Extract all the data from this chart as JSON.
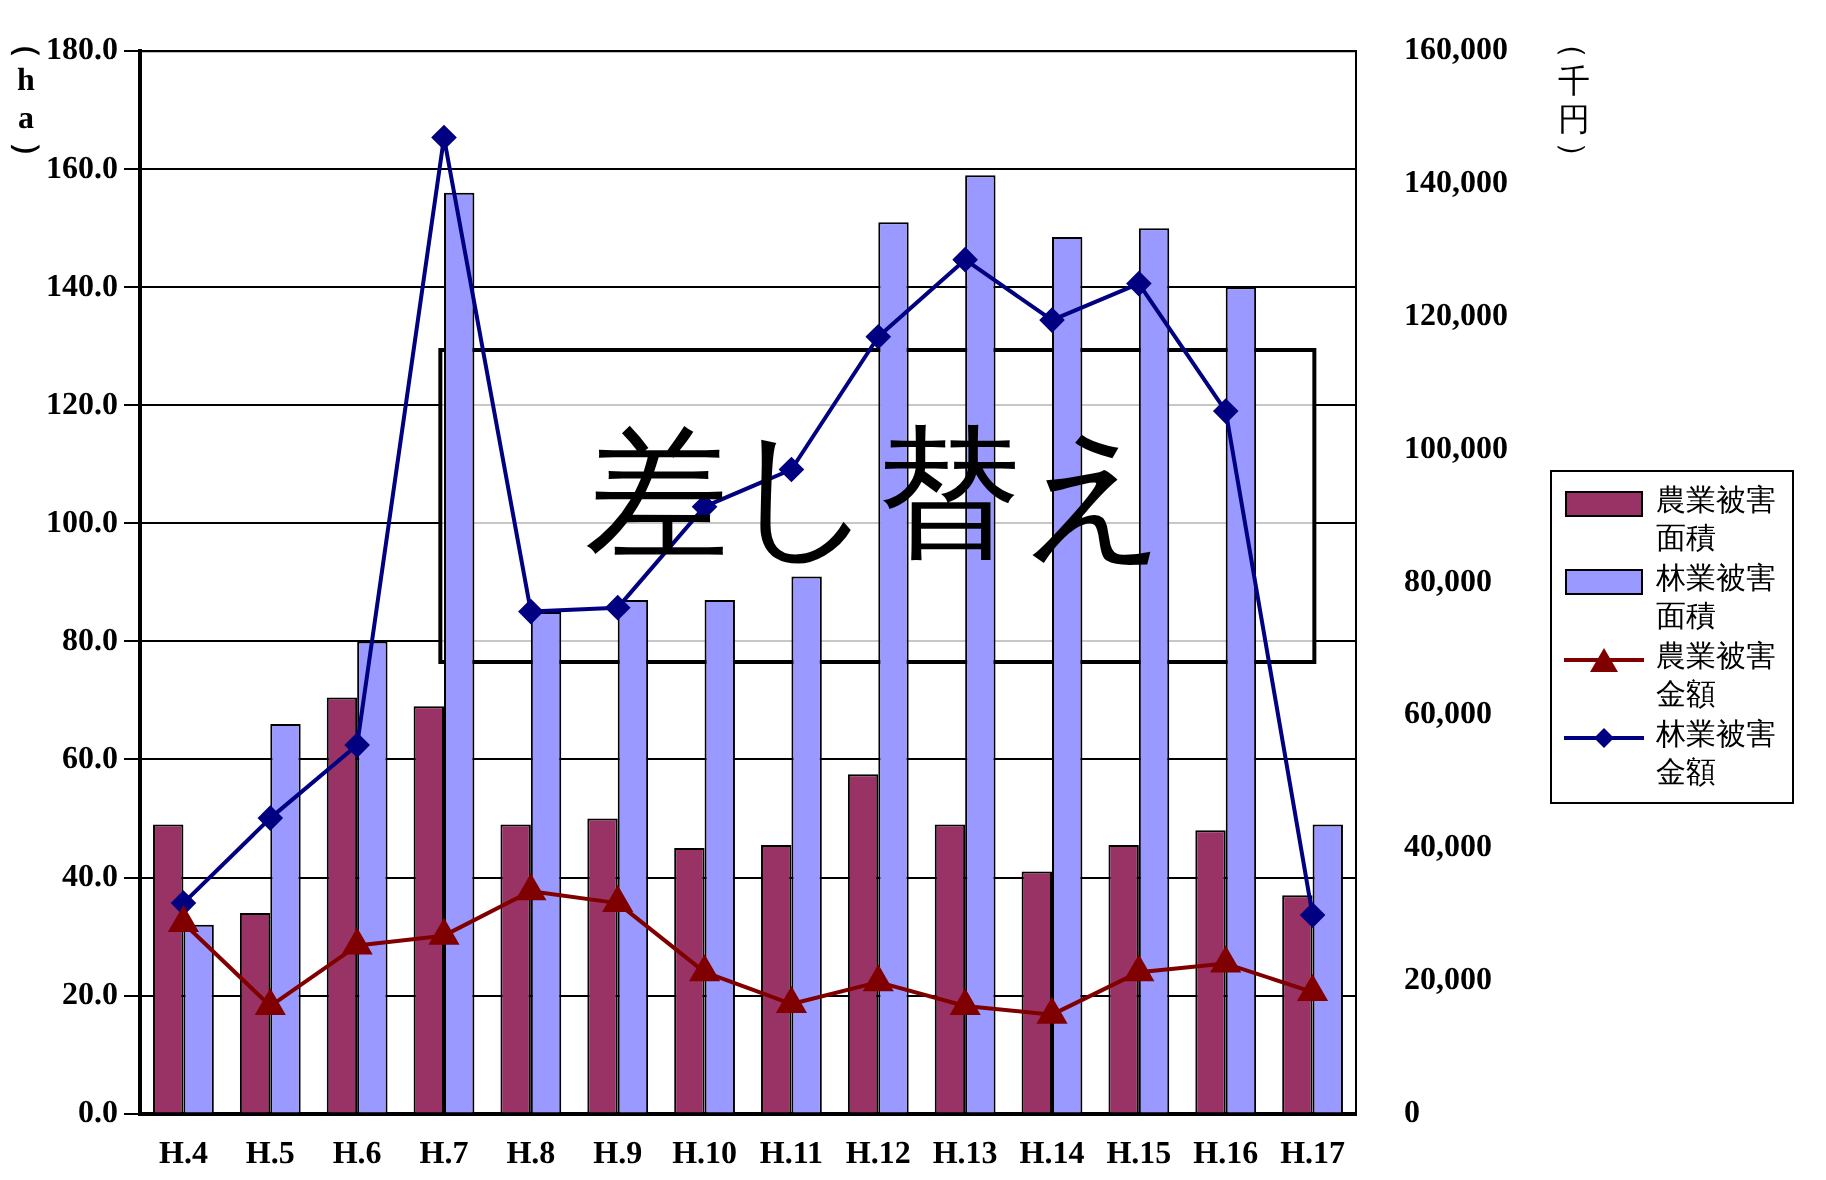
{
  "chart_data": {
    "type": "bar",
    "ylabel": "（ha）",
    "y2label": "（千円）",
    "categories": [
      "H.4",
      "H.5",
      "H.6",
      "H.7",
      "H.8",
      "H.9",
      "H.10",
      "H.11",
      "H.12",
      "H.13",
      "H.14",
      "H.15",
      "H.16",
      "H.17"
    ],
    "series": [
      {
        "name": "農業被害面積",
        "color": "#993366",
        "values": [
          49,
          34,
          70.5,
          69,
          49,
          50,
          45,
          45.5,
          57.5,
          49,
          41,
          45.5,
          48,
          37
        ]
      },
      {
        "name": "林業被害面積",
        "color": "#9999ff",
        "values": [
          32,
          66,
          80,
          156,
          85,
          87,
          87,
          91,
          151,
          159,
          148.5,
          150,
          140,
          49
        ]
      },
      {
        "name": "農業被害金額",
        "type": "line",
        "axis": "y2",
        "marker": "triangle",
        "color": "#800000",
        "values": [
          28700,
          16200,
          25300,
          26800,
          33500,
          31700,
          21300,
          16500,
          19800,
          16200,
          14900,
          21300,
          22600,
          18300
        ]
      },
      {
        "name": "林業被害金額",
        "type": "line",
        "axis": "y2",
        "marker": "diamond",
        "color": "#000080",
        "values": [
          31700,
          44500,
          55500,
          147000,
          75600,
          76200,
          91400,
          97000,
          117000,
          128600,
          119500,
          125000,
          105800,
          29900
        ]
      }
    ],
    "ylim": [
      0,
      180
    ],
    "yticks": [
      {
        "value": 0,
        "label": "0.0"
      },
      {
        "value": 20,
        "label": "20.0"
      },
      {
        "value": 40,
        "label": "40.0"
      },
      {
        "value": 60,
        "label": "60.0"
      },
      {
        "value": 80,
        "label": "80.0"
      },
      {
        "value": 100,
        "label": "100.0"
      },
      {
        "value": 120,
        "label": "120.0"
      },
      {
        "value": 140,
        "label": "140.0"
      },
      {
        "value": 160,
        "label": "160.0"
      },
      {
        "value": 180,
        "label": "180.0"
      }
    ],
    "y2lim": [
      0,
      160000
    ],
    "y2ticks": [
      0,
      {
        "value": 20000,
        "label": "20,000"
      },
      {
        "value": 40000,
        "label": "40,000"
      },
      {
        "value": 60000,
        "label": "60,000"
      },
      {
        "value": 80000,
        "label": "80,000"
      },
      {
        "value": 100000,
        "label": "100,000"
      },
      {
        "value": 120000,
        "label": "120,000"
      },
      {
        "value": 140000,
        "label": "140,000"
      },
      {
        "value": 160000,
        "label": "160,000"
      }
    ],
    "grid": "y",
    "legend": "right",
    "annotations": [
      "差し替え"
    ]
  }
}
